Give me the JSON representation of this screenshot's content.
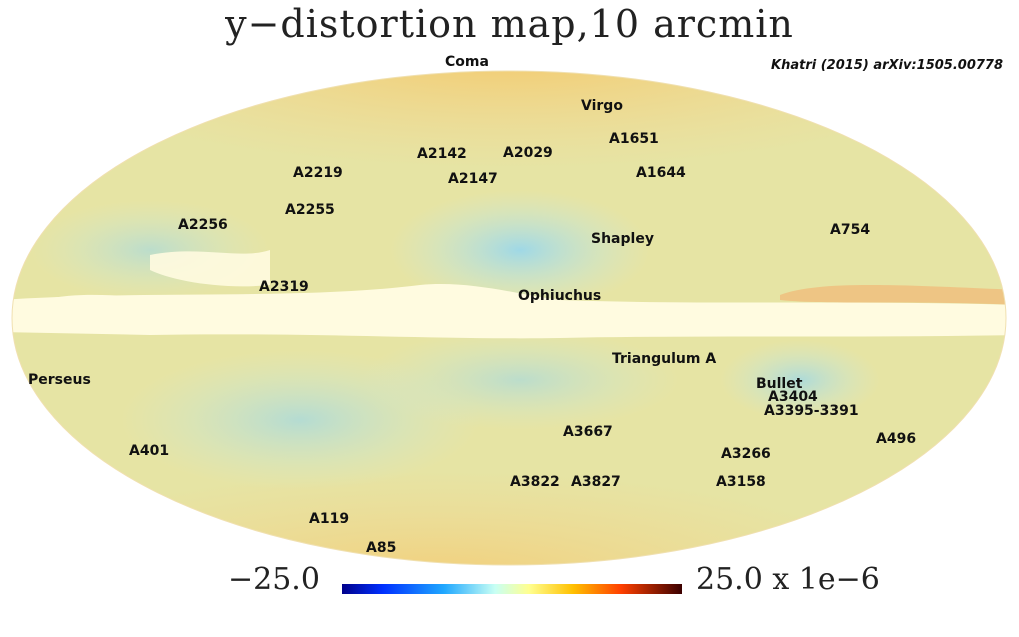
{
  "map": {
    "title": "y−distortion map,10 arcmin",
    "citation": "Khatri (2015)  arXiv:1505.00778",
    "projection": "mollweide",
    "colorbar": {
      "min_label": "−25.0",
      "max_label": "25.0  x  1e−6",
      "min": -25.0,
      "max": 25.0,
      "unit_scale": "1e-6",
      "stops": [
        "#00008b",
        "#0040ff",
        "#3fbfff",
        "#e0fff8",
        "#ffff80",
        "#ffc000",
        "#ff4000",
        "#8b0000",
        "#3b0000"
      ]
    },
    "colors": {
      "galactic_plane": "#fffbe0",
      "background_warm": "#f6d58a",
      "background_cool": "#bfe6d8"
    },
    "clusters": [
      {
        "name": "Coma"
      },
      {
        "name": "Virgo"
      },
      {
        "name": "A1651"
      },
      {
        "name": "A1644"
      },
      {
        "name": "A2142"
      },
      {
        "name": "A2029"
      },
      {
        "name": "A2147"
      },
      {
        "name": "A2219"
      },
      {
        "name": "A2255"
      },
      {
        "name": "A2256"
      },
      {
        "name": "Shapley"
      },
      {
        "name": "A754"
      },
      {
        "name": "A2319"
      },
      {
        "name": "Ophiuchus"
      },
      {
        "name": "Triangulum A"
      },
      {
        "name": "Perseus"
      },
      {
        "name": "Bullet"
      },
      {
        "name": "A3404"
      },
      {
        "name": "A3395-3391"
      },
      {
        "name": "A496"
      },
      {
        "name": "A3667"
      },
      {
        "name": "A401"
      },
      {
        "name": "A3266"
      },
      {
        "name": "A3822"
      },
      {
        "name": "A3827"
      },
      {
        "name": "A3158"
      },
      {
        "name": "A119"
      },
      {
        "name": "A85"
      }
    ]
  }
}
